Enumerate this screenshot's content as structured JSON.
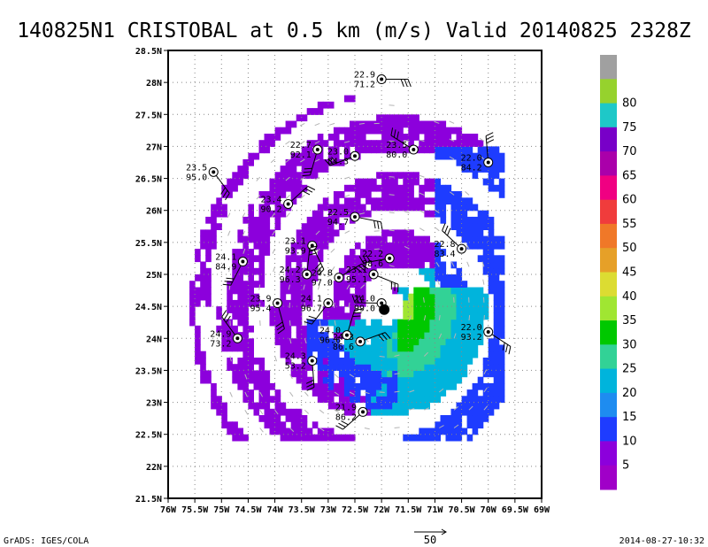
{
  "header": {
    "title": "140825N1 CRISTOBAL at 0.5 km (m/s) Valid 20140825 2328Z"
  },
  "footer": {
    "left": "GrADS: IGES/COLA",
    "scale_value": "50",
    "right": "2014-08-27-10:32"
  },
  "colorbar": {
    "levels": [
      {
        "label": "",
        "color": "#a0a0a0"
      },
      {
        "label": "80",
        "color": "#96d22d"
      },
      {
        "label": "75",
        "color": "#1ec8c8"
      },
      {
        "label": "70",
        "color": "#7800c8"
      },
      {
        "label": "65",
        "color": "#aa00aa"
      },
      {
        "label": "60",
        "color": "#f00082"
      },
      {
        "label": "55",
        "color": "#f03c3c"
      },
      {
        "label": "50",
        "color": "#f07828"
      },
      {
        "label": "45",
        "color": "#e6a028"
      },
      {
        "label": "40",
        "color": "#dcdc32"
      },
      {
        "label": "35",
        "color": "#a0e632"
      },
      {
        "label": "30",
        "color": "#00c800"
      },
      {
        "label": "25",
        "color": "#32d296"
      },
      {
        "label": "20",
        "color": "#00b4dc"
      },
      {
        "label": "15",
        "color": "#1e8cf0"
      },
      {
        "label": "10",
        "color": "#1e3cff"
      },
      {
        "label": "5",
        "color": "#8c00dc"
      },
      {
        "label": "",
        "color": "#a000c8"
      }
    ]
  },
  "chart_data": {
    "type": "heatmap",
    "title": "140825N1 CRISTOBAL at 0.5 km (m/s) Valid 20140825 2328Z",
    "xlabel": "",
    "ylabel": "",
    "xlim": [
      -76,
      -69
    ],
    "ylim": [
      21.5,
      28.5
    ],
    "grid": true,
    "x_ticks": [
      {
        "value": -76,
        "label": "76W"
      },
      {
        "value": -75.5,
        "label": "75.5W"
      },
      {
        "value": -75,
        "label": "75W"
      },
      {
        "value": -74.5,
        "label": "74.5W"
      },
      {
        "value": -74,
        "label": "74W"
      },
      {
        "value": -73.5,
        "label": "73.5W"
      },
      {
        "value": -73,
        "label": "73W"
      },
      {
        "value": -72.5,
        "label": "72.5W"
      },
      {
        "value": -72,
        "label": "72W"
      },
      {
        "value": -71.5,
        "label": "71.5W"
      },
      {
        "value": -71,
        "label": "71W"
      },
      {
        "value": -70.5,
        "label": "70.5W"
      },
      {
        "value": -70,
        "label": "70W"
      },
      {
        "value": -69.5,
        "label": "69.5W"
      },
      {
        "value": -69,
        "label": "69W"
      }
    ],
    "y_ticks": [
      {
        "value": 21.5,
        "label": "21.5N"
      },
      {
        "value": 22,
        "label": "22N"
      },
      {
        "value": 22.5,
        "label": "22.5N"
      },
      {
        "value": 23,
        "label": "23N"
      },
      {
        "value": 23.5,
        "label": "23.5N"
      },
      {
        "value": 24,
        "label": "24N"
      },
      {
        "value": 24.5,
        "label": "24.5N"
      },
      {
        "value": 25,
        "label": "25N"
      },
      {
        "value": 25.5,
        "label": "25.5N"
      },
      {
        "value": 26,
        "label": "26N"
      },
      {
        "value": 26.5,
        "label": "26.5N"
      },
      {
        "value": 27,
        "label": "27N"
      },
      {
        "value": 27.5,
        "label": "27.5N"
      },
      {
        "value": 28,
        "label": "28N"
      },
      {
        "value": 28.5,
        "label": "28.5N"
      }
    ],
    "storm_center": {
      "lon": -71.95,
      "lat": 24.45
    },
    "stations": [
      {
        "lon": -72.0,
        "lat": 28.05,
        "temp": "22.9",
        "rh": "71.2"
      },
      {
        "lon": -75.15,
        "lat": 26.6,
        "temp": "23.5",
        "rh": "95.0"
      },
      {
        "lon": -73.2,
        "lat": 26.95,
        "temp": "22.7",
        "rh": "92.1"
      },
      {
        "lon": -72.5,
        "lat": 26.85,
        "temp": "23.0",
        "rh": "84.3"
      },
      {
        "lon": -71.4,
        "lat": 26.95,
        "temp": "23.5",
        "rh": "80.0"
      },
      {
        "lon": -70.0,
        "lat": 26.75,
        "temp": "22.0",
        "rh": "84.2"
      },
      {
        "lon": -73.75,
        "lat": 26.1,
        "temp": "23.4",
        "rh": "90.2"
      },
      {
        "lon": -72.5,
        "lat": 25.9,
        "temp": "22.5",
        "rh": "94.7"
      },
      {
        "lon": -73.3,
        "lat": 25.45,
        "temp": "23.1",
        "rh": "93.9"
      },
      {
        "lon": -74.6,
        "lat": 25.2,
        "temp": "24.1",
        "rh": "84.9"
      },
      {
        "lon": -71.85,
        "lat": 25.25,
        "temp": "22.2",
        "rh": "98.6"
      },
      {
        "lon": -70.5,
        "lat": 25.4,
        "temp": "22.8",
        "rh": "83.4"
      },
      {
        "lon": -73.4,
        "lat": 25.0,
        "temp": "24.2",
        "rh": "96.3"
      },
      {
        "lon": -72.8,
        "lat": 24.95,
        "temp": "24.8",
        "rh": "97.0"
      },
      {
        "lon": -72.15,
        "lat": 25.0,
        "temp": "23.1",
        "rh": "95.1"
      },
      {
        "lon": -73.95,
        "lat": 24.55,
        "temp": "23.9",
        "rh": "95.4"
      },
      {
        "lon": -73.0,
        "lat": 24.55,
        "temp": "24.1",
        "rh": "96.7"
      },
      {
        "lon": -72.0,
        "lat": 24.55,
        "temp": "24.0",
        "rh": "99.0"
      },
      {
        "lon": -74.7,
        "lat": 24.0,
        "temp": "24.9",
        "rh": "73.2"
      },
      {
        "lon": -72.65,
        "lat": 24.05,
        "temp": "24.0",
        "rh": "96.6"
      },
      {
        "lon": -72.4,
        "lat": 23.95,
        "temp": "24.3",
        "rh": "86.6"
      },
      {
        "lon": -70.0,
        "lat": 24.1,
        "temp": "22.0",
        "rh": "93.2"
      },
      {
        "lon": -73.3,
        "lat": 23.65,
        "temp": "24.3",
        "rh": "53.2"
      },
      {
        "lon": -72.35,
        "lat": 22.85,
        "temp": "21.9",
        "rh": "86.2"
      }
    ]
  }
}
